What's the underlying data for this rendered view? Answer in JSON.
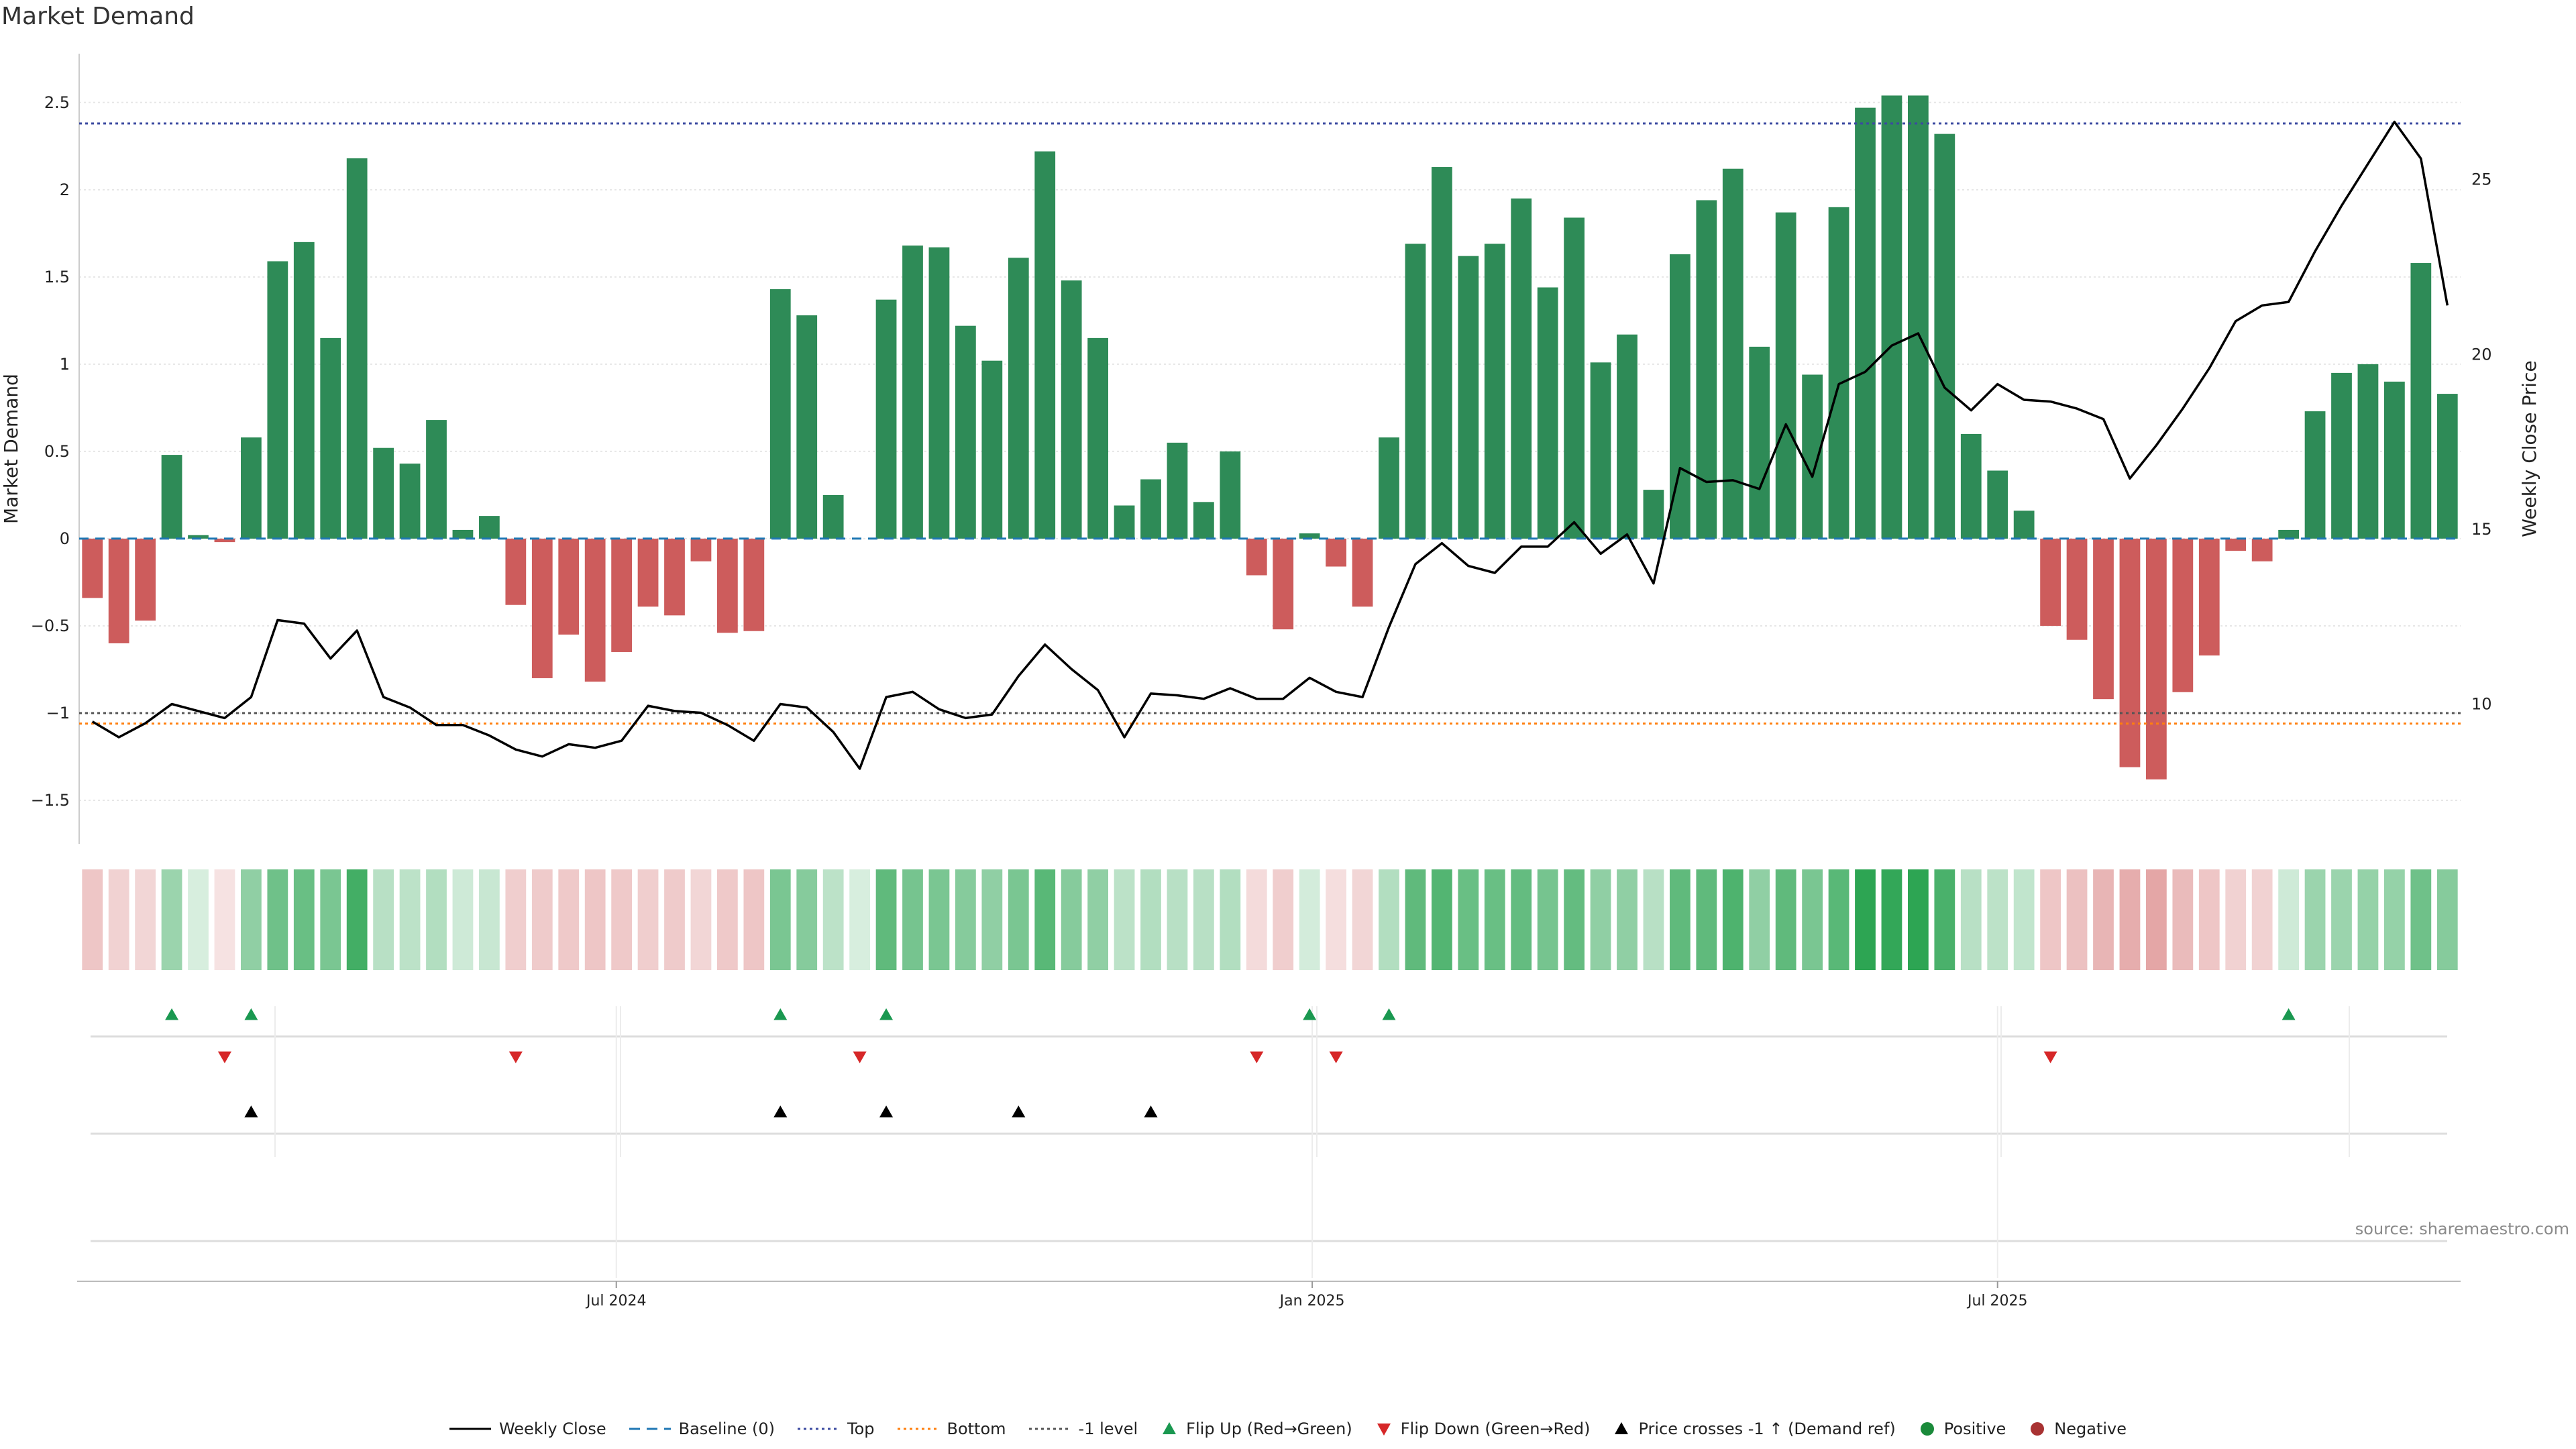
{
  "title": "Market Demand",
  "source": "source: sharemaestro.com",
  "colors": {
    "positive": "#2e8b57",
    "negative": "#cd5c5c",
    "flip_up": "#1a9850",
    "flip_down": "#d62728",
    "price_line": "#000000",
    "baseline": "#1f77b4",
    "top": "#3b4aa0",
    "bottom": "#ff7f0e",
    "minus_one": "#555555",
    "grid": "#e6e6e6"
  },
  "legend": [
    {
      "label": "Weekly Close",
      "icon": "solid-line-icon"
    },
    {
      "label": "Baseline (0)",
      "icon": "dashed-line-icon"
    },
    {
      "label": "Top",
      "icon": "dotted-line-icon"
    },
    {
      "label": "Bottom",
      "icon": "dotted-line-icon"
    },
    {
      "label": "-1 level",
      "icon": "dotted-line-icon"
    },
    {
      "label": "Flip Up (Red→Green)",
      "icon": "triangle-up-icon"
    },
    {
      "label": "Flip Down (Green→Red)",
      "icon": "triangle-down-icon"
    },
    {
      "label": "Price crosses -1 ↑ (Demand ref)",
      "icon": "triangle-up-icon"
    },
    {
      "label": "Positive",
      "icon": "circle-icon"
    },
    {
      "label": "Negative",
      "icon": "circle-icon"
    }
  ],
  "chart_data": {
    "type": "bar",
    "title": "Market Demand",
    "ylabel": "Market Demand",
    "y2label": "Weekly Close Price",
    "ylim": [
      -1.75,
      2.78
    ],
    "yticks": [
      -1.5,
      -1,
      -0.5,
      0,
      0.5,
      1,
      1.5,
      2,
      2.5
    ],
    "ytick_labels": [
      "−1.5",
      "−1",
      "−0.5",
      "0",
      "0.5",
      "1",
      "1.5",
      "2",
      "2.5"
    ],
    "y2lim": [
      6.0,
      28.6
    ],
    "y2ticks": [
      10,
      15,
      20,
      25
    ],
    "y2tick_labels": [
      "10",
      "15",
      "20",
      "25"
    ],
    "xtick_labels": [
      "Jul 2024",
      "Jan 2025",
      "Jul 2025"
    ],
    "xtick_index": [
      20.3,
      46.6,
      72.5
    ],
    "levels": {
      "top": 2.38,
      "bottom": -1.06,
      "minus_one": -1.0,
      "baseline": 0
    },
    "demand": [
      -0.34,
      -0.6,
      -0.47,
      0.48,
      0.02,
      -0.02,
      0.58,
      1.59,
      1.7,
      1.15,
      2.18,
      0.52,
      0.43,
      0.68,
      0.05,
      0.13,
      -0.38,
      -0.8,
      -0.55,
      -0.82,
      -0.65,
      -0.39,
      -0.44,
      -0.13,
      -0.54,
      -0.53,
      1.43,
      1.28,
      0.25,
      0.0,
      1.37,
      1.68,
      1.67,
      1.22,
      1.02,
      1.61,
      2.22,
      1.48,
      1.15,
      0.19,
      0.34,
      0.55,
      0.21,
      0.5,
      -0.21,
      -0.52,
      0.03,
      -0.16,
      -0.39,
      0.58,
      1.69,
      2.13,
      1.62,
      1.69,
      1.95,
      1.44,
      1.84,
      1.01,
      1.17,
      0.28,
      1.63,
      1.94,
      2.12,
      1.1,
      1.87,
      0.94,
      1.9,
      2.47,
      2.54,
      2.54,
      2.32,
      0.6,
      0.39,
      0.16,
      -0.5,
      -0.58,
      -0.92,
      -1.31,
      -1.38,
      -0.88,
      -0.67,
      -0.07,
      -0.13,
      0.05,
      0.73,
      0.95,
      1.0,
      0.9,
      1.58,
      0.83
    ],
    "close": [
      9.5,
      9.05,
      9.45,
      10.0,
      9.8,
      9.6,
      10.2,
      12.4,
      12.3,
      11.3,
      12.1,
      10.2,
      9.9,
      9.4,
      9.4,
      9.1,
      8.7,
      8.5,
      8.85,
      8.75,
      8.95,
      9.95,
      9.8,
      9.75,
      9.4,
      8.95,
      10.0,
      9.9,
      9.2,
      8.15,
      10.2,
      10.35,
      9.85,
      9.6,
      9.7,
      10.8,
      11.7,
      11.0,
      10.4,
      9.05,
      10.3,
      10.25,
      10.15,
      10.45,
      10.15,
      10.15,
      10.75,
      10.35,
      10.2,
      12.2,
      14.0,
      14.6,
      13.95,
      13.75,
      14.5,
      14.5,
      15.2,
      14.3,
      14.85,
      13.45,
      16.75,
      16.35,
      16.4,
      16.15,
      18.0,
      16.5,
      19.15,
      19.5,
      20.25,
      20.6,
      19.05,
      18.4,
      19.15,
      18.7,
      18.65,
      18.45,
      18.15,
      16.45,
      17.4,
      18.45,
      19.6,
      20.95,
      21.4,
      21.5,
      22.95,
      24.25,
      25.45,
      26.65,
      25.6,
      21.4
    ],
    "heat_alpha": [
      0.35,
      0.28,
      0.25,
      0.45,
      0.18,
      0.18,
      0.5,
      0.65,
      0.68,
      0.6,
      0.85,
      0.32,
      0.3,
      0.35,
      0.22,
      0.25,
      0.3,
      0.32,
      0.33,
      0.35,
      0.33,
      0.3,
      0.32,
      0.25,
      0.33,
      0.35,
      0.6,
      0.55,
      0.3,
      0.18,
      0.72,
      0.62,
      0.6,
      0.55,
      0.5,
      0.6,
      0.75,
      0.55,
      0.5,
      0.3,
      0.35,
      0.32,
      0.32,
      0.35,
      0.22,
      0.3,
      0.2,
      0.2,
      0.25,
      0.35,
      0.72,
      0.78,
      0.68,
      0.68,
      0.7,
      0.62,
      0.7,
      0.5,
      0.5,
      0.32,
      0.72,
      0.72,
      0.8,
      0.5,
      0.72,
      0.6,
      0.75,
      0.95,
      0.92,
      0.95,
      0.82,
      0.32,
      0.3,
      0.28,
      0.35,
      0.38,
      0.45,
      0.5,
      0.55,
      0.42,
      0.35,
      0.28,
      0.28,
      0.22,
      0.45,
      0.45,
      0.48,
      0.48,
      0.65,
      0.55
    ],
    "flip_up_index": [
      3,
      6,
      26,
      30,
      46,
      49,
      83
    ],
    "flip_down_index": [
      5,
      16,
      29,
      44,
      47,
      74
    ],
    "price_cross_index": [
      6,
      26,
      30,
      35,
      40
    ]
  }
}
